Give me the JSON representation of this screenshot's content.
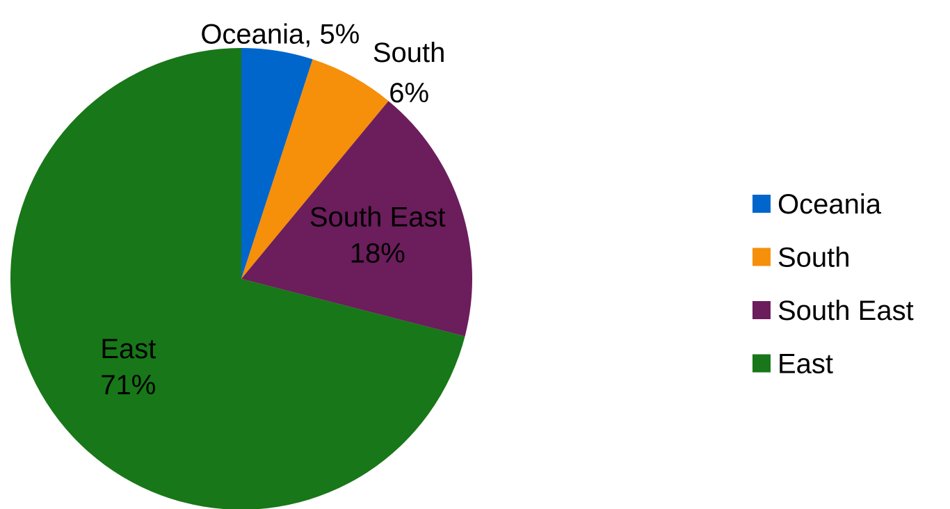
{
  "chart_data": {
    "type": "pie",
    "title": "",
    "legend_position": "right",
    "slices": [
      {
        "name": "Oceania",
        "value": 5,
        "label": "Oceania, 5%",
        "color": "#0066CC"
      },
      {
        "name": "South",
        "value": 6,
        "label": "South\n6%",
        "color": "#F68F0A"
      },
      {
        "name": "South East",
        "value": 18,
        "label": "South East\n18%",
        "color": "#6B1D5C"
      },
      {
        "name": "East",
        "value": 71,
        "label": "East\n71%",
        "color": "#187718"
      }
    ]
  }
}
